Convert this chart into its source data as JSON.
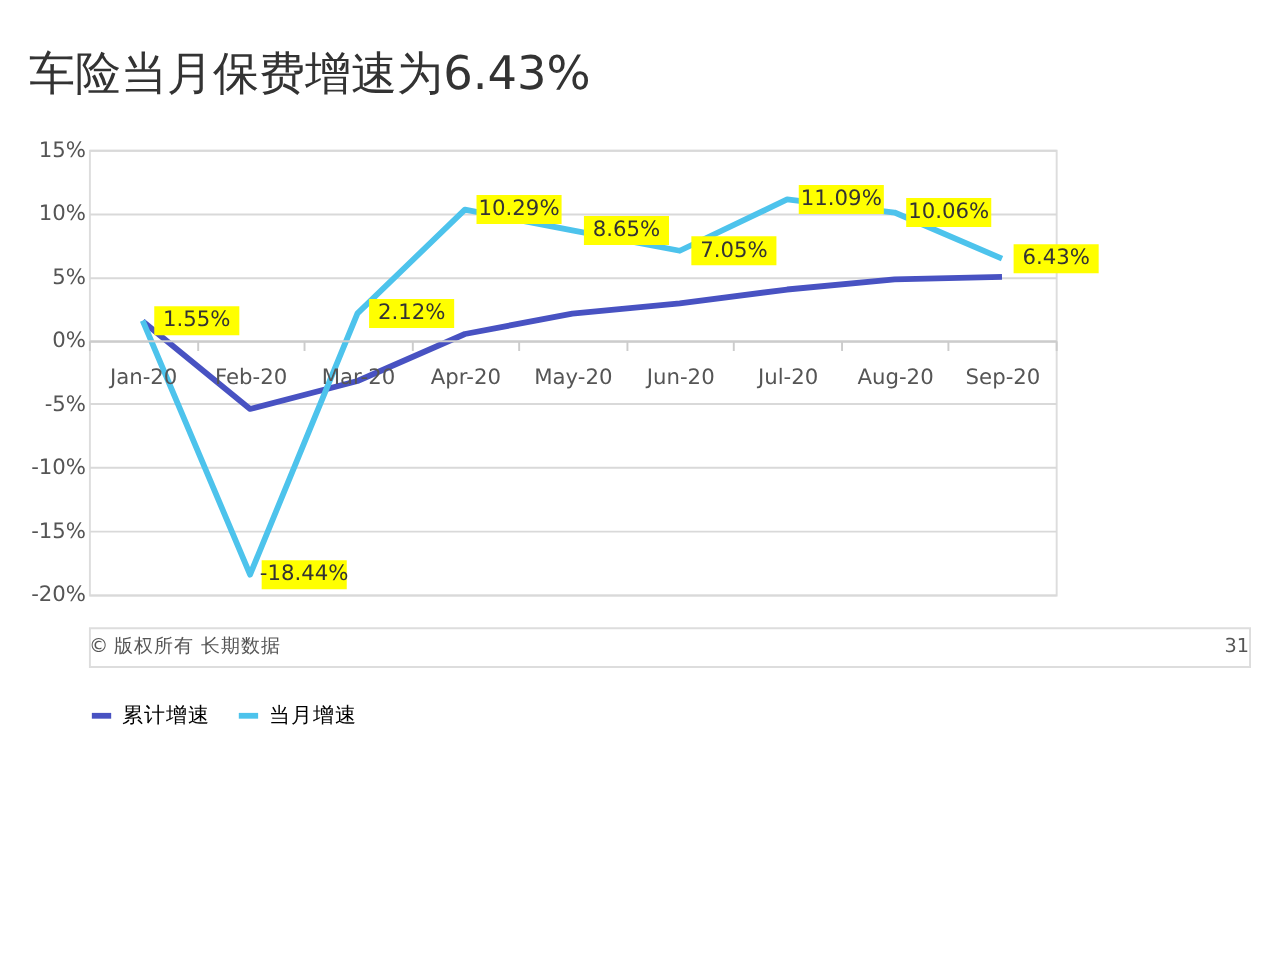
{
  "chart_data": {
    "type": "line",
    "title": "车险当月保费增速为6.43%",
    "categories": [
      "Jan-20",
      "Feb-20",
      "Mar-20",
      "Apr-20",
      "May-20",
      "Jun-20",
      "Jul-20",
      "Aug-20",
      "Sep-20"
    ],
    "series": [
      {
        "name": "累计增速",
        "color": "#4852c2",
        "values": [
          1.5,
          -5.4,
          -3.2,
          0.5,
          2.1,
          2.9,
          4.0,
          4.8,
          5.0
        ]
      },
      {
        "name": "当月增速",
        "color": "#4dc3ec",
        "values": [
          1.55,
          -18.44,
          2.12,
          10.29,
          8.65,
          7.05,
          11.09,
          10.06,
          6.43
        ],
        "value_labels": [
          "1.55%",
          "-18.44%",
          "2.12%",
          "10.29%",
          "8.65%",
          "7.05%",
          "11.09%",
          "10.06%",
          "6.43%"
        ]
      }
    ],
    "ylim": [
      -20,
      15
    ],
    "yticks": [
      {
        "value": -20,
        "label": "-20%"
      },
      {
        "value": -15,
        "label": "-15%"
      },
      {
        "value": -10,
        "label": "-10%"
      },
      {
        "value": -5,
        "label": "-5%"
      },
      {
        "value": 0,
        "label": "0%"
      },
      {
        "value": 5,
        "label": "5%"
      },
      {
        "value": 10,
        "label": "10%"
      },
      {
        "value": 15,
        "label": "15%"
      }
    ],
    "grid": "y",
    "legend": "bottom",
    "marker": "none",
    "line_style": "solid",
    "annotations": [
      "© 版权所有 长期数据",
      "31"
    ]
  }
}
